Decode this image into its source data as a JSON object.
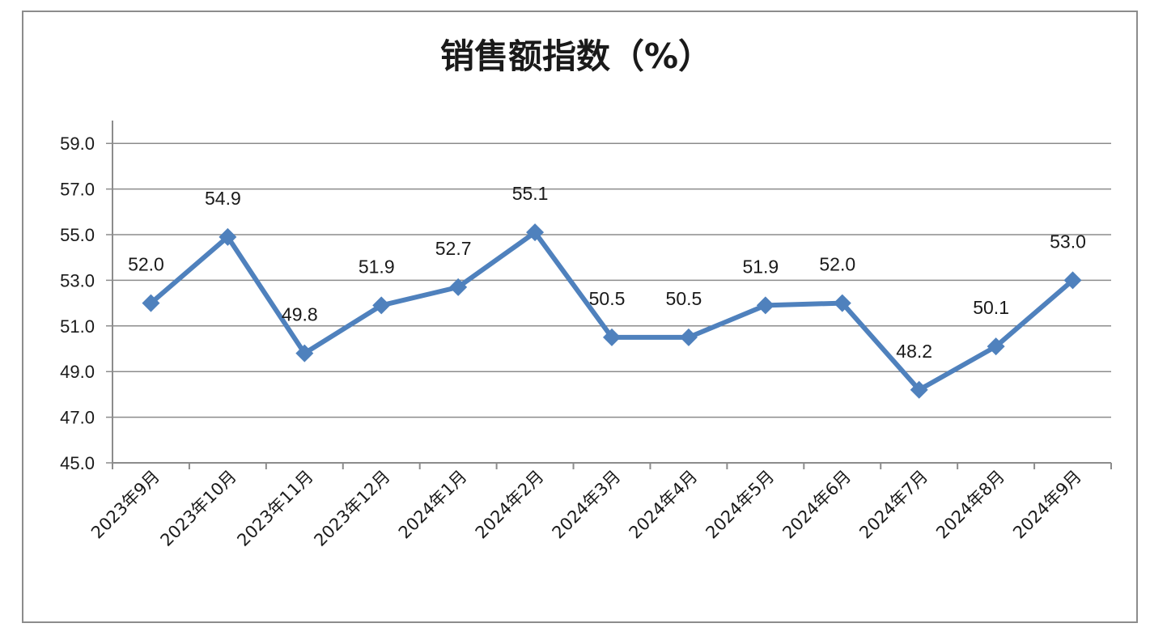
{
  "chart_data": {
    "type": "line",
    "title": "销售额指数（%）",
    "xlabel": "",
    "ylabel": "",
    "categories": [
      "2023年9月",
      "2023年10月",
      "2023年11月",
      "2023年12月",
      "2024年1月",
      "2024年2月",
      "2024年3月",
      "2024年4月",
      "2024年5月",
      "2024年6月",
      "2024年7月",
      "2024年8月",
      "2024年9月"
    ],
    "values": [
      52.0,
      54.9,
      49.8,
      51.9,
      52.7,
      55.1,
      50.5,
      50.5,
      51.9,
      52.0,
      48.2,
      50.1,
      53.0
    ],
    "data_labels": [
      "52.0",
      "54.9",
      "49.8",
      "51.9",
      "52.7",
      "55.1",
      "50.5",
      "50.5",
      "51.9",
      "52.0",
      "48.2",
      "50.1",
      "53.0"
    ],
    "ylim": [
      45,
      60
    ],
    "yticks": [
      "45.0",
      "47.0",
      "49.0",
      "51.0",
      "53.0",
      "55.0",
      "57.0",
      "59.0"
    ],
    "grid": true,
    "legend": "none",
    "marker": "diamond",
    "colors": {
      "line": "#4F81BD",
      "grid": "#8c8c8c",
      "text": "#1a1a1a"
    }
  }
}
